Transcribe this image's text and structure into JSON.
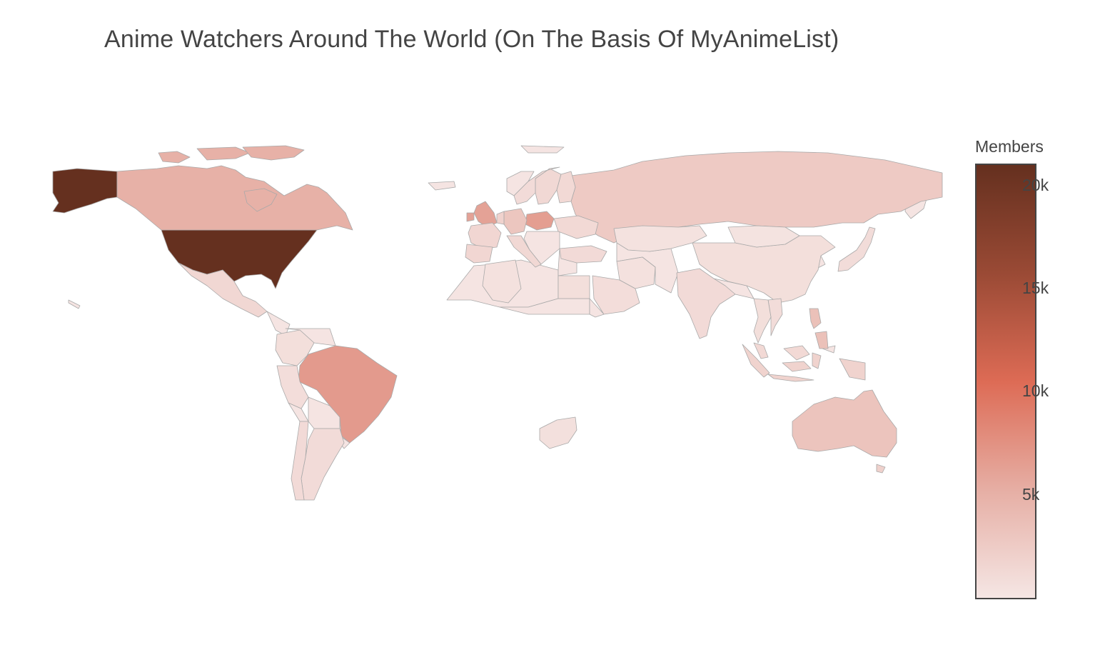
{
  "title": "Anime Watchers Around The World (On The Basis Of MyAnimeList)",
  "chart_data": {
    "type": "choropleth",
    "title": "Anime Watchers Around The World (On The Basis Of MyAnimeList)",
    "z_label": "Members",
    "colorscale": [
      "#f5e6e4",
      "#e6aea4",
      "#dd6b55",
      "#9a4a35",
      "#65301f"
    ],
    "zrange": [
      0,
      21000
    ],
    "colorbar": {
      "title": "Members",
      "ticks": [
        {
          "value": 5000,
          "label": "5k"
        },
        {
          "value": 10000,
          "label": "10k"
        },
        {
          "value": 15000,
          "label": "15k"
        },
        {
          "value": 20000,
          "label": "20k"
        }
      ]
    },
    "countries": [
      {
        "name": "United States",
        "value": 21000
      },
      {
        "name": "Brazil",
        "value": 6800
      },
      {
        "name": "Poland",
        "value": 6500
      },
      {
        "name": "United Kingdom",
        "value": 6200
      },
      {
        "name": "Canada",
        "value": 5000
      },
      {
        "name": "Australia",
        "value": 3200
      },
      {
        "name": "Russia",
        "value": 2600
      },
      {
        "name": "Germany",
        "value": 3000
      },
      {
        "name": "Philippines",
        "value": 3500
      },
      {
        "name": "Indonesia",
        "value": 1800
      },
      {
        "name": "Mexico",
        "value": 1400
      },
      {
        "name": "France",
        "value": 1500
      },
      {
        "name": "Spain",
        "value": 1500
      },
      {
        "name": "Italy",
        "value": 1300
      },
      {
        "name": "Netherlands",
        "value": 1900
      },
      {
        "name": "Sweden",
        "value": 1300
      },
      {
        "name": "Finland",
        "value": 1200
      },
      {
        "name": "Norway",
        "value": 1000
      },
      {
        "name": "Ukraine",
        "value": 1200
      },
      {
        "name": "Turkey",
        "value": 1100
      },
      {
        "name": "India",
        "value": 1100
      },
      {
        "name": "China",
        "value": 700
      },
      {
        "name": "Japan",
        "value": 900
      },
      {
        "name": "Argentina",
        "value": 1000
      },
      {
        "name": "Chile",
        "value": 1100
      },
      {
        "name": "Peru",
        "value": 800
      },
      {
        "name": "Colombia",
        "value": 700
      },
      {
        "name": "Malaysia",
        "value": 1200
      },
      {
        "name": "Vietnam",
        "value": 900
      },
      {
        "name": "Thailand",
        "value": 700
      },
      {
        "name": "Saudi Arabia",
        "value": 800
      },
      {
        "name": "Egypt",
        "value": 700
      },
      {
        "name": "South Africa",
        "value": 600
      },
      {
        "name": "Kazakhstan",
        "value": 400
      },
      {
        "name": "Mongolia",
        "value": 300
      },
      {
        "name": "Algeria",
        "value": 500
      },
      {
        "name": "Iran",
        "value": 500
      },
      {
        "name": "New Zealand",
        "value": 2000
      }
    ]
  }
}
